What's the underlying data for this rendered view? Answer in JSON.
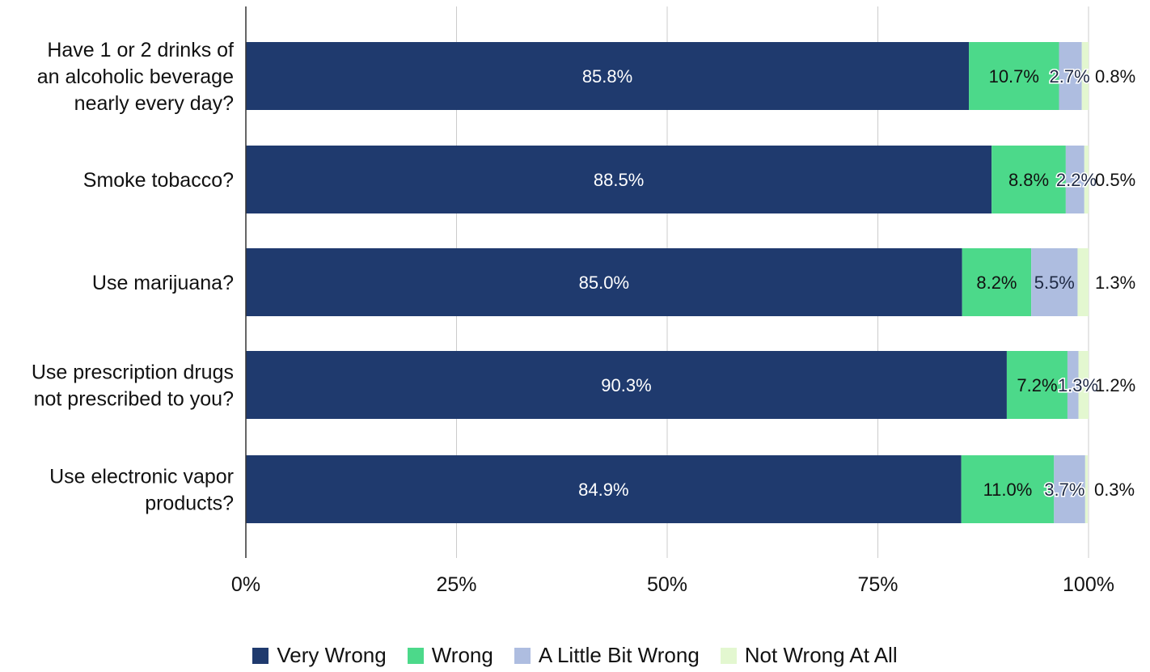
{
  "chart_data": {
    "type": "bar",
    "orientation": "horizontal",
    "stacked": true,
    "categories": [
      "Have 1 or 2 drinks of an alcoholic beverage nearly every day?",
      "Smoke tobacco?",
      "Use marijuana?",
      "Use prescription drugs not prescribed to you?",
      "Use electronic vapor products?"
    ],
    "category_lines": [
      [
        "Have 1 or 2 drinks of",
        "an alcoholic beverage",
        "nearly every day?"
      ],
      [
        "Smoke tobacco?"
      ],
      [
        "Use marijuana?"
      ],
      [
        "Use prescription drugs",
        "not prescribed to you?"
      ],
      [
        "Use electronic vapor",
        "products?"
      ]
    ],
    "series": [
      {
        "name": "Very Wrong",
        "color": "#1f3a6e",
        "values": [
          85.8,
          88.5,
          85.0,
          90.3,
          84.9
        ],
        "labels": [
          "85.8%",
          "88.5%",
          "85.0%",
          "90.3%",
          "84.9%"
        ]
      },
      {
        "name": "Wrong",
        "color": "#4cd98a",
        "values": [
          10.7,
          8.8,
          8.2,
          7.2,
          11.0
        ],
        "labels": [
          "10.7%",
          "8.8%",
          "8.2%",
          "7.2%",
          "11.0%"
        ]
      },
      {
        "name": "A Little Bit Wrong",
        "color": "#aebde0",
        "values": [
          2.7,
          2.2,
          5.5,
          1.3,
          3.7
        ],
        "labels": [
          "2.7%",
          "2.2%",
          "5.5%",
          "1.3%",
          "3.7%"
        ]
      },
      {
        "name": "Not Wrong At All",
        "color": "#e3f7d0",
        "values": [
          0.8,
          0.5,
          1.3,
          1.2,
          0.3
        ],
        "labels": [
          "0.8%",
          "0.5%",
          "1.3%",
          "1.2%",
          "0.3%"
        ]
      }
    ],
    "xaxis": {
      "ticks": [
        0,
        25,
        50,
        75,
        100
      ],
      "tick_labels": [
        "0%",
        "25%",
        "50%",
        "75%",
        "100%"
      ],
      "range": [
        0,
        100
      ]
    },
    "grid": true,
    "legend_position": "bottom",
    "title": "",
    "xlabel": "",
    "ylabel": ""
  }
}
